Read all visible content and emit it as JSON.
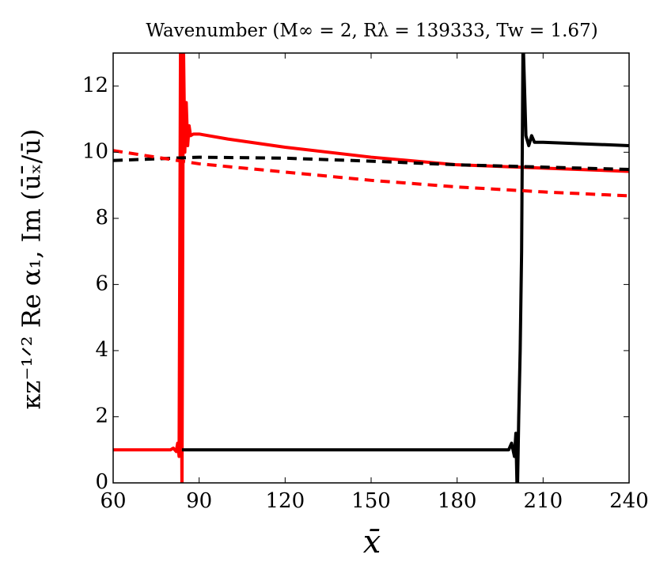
{
  "chart_data": {
    "type": "line",
    "title": "Wavenumber (M∞ = 2, Rλ = 139333, Tw = 1.67)",
    "x_label": "x̄",
    "y_label": "κz⁻¹ᐟ² Re α₁, Im (ūₓ̄/ū)",
    "xlim": [
      60,
      240
    ],
    "xticks": [
      60,
      90,
      120,
      150,
      180,
      210,
      240
    ],
    "ylim": [
      0,
      13
    ],
    "yticks": [
      0,
      2,
      4,
      6,
      8,
      10,
      12
    ],
    "series": [
      {
        "color": "#ff0000",
        "style": "solid",
        "x": [
          60,
          70,
          80,
          81,
          82,
          82.5,
          83,
          83.5,
          84,
          84.5,
          85,
          85.5,
          86,
          86.5,
          87,
          88,
          90,
          100,
          120,
          150,
          180,
          210,
          240
        ],
        "values": [
          1,
          1,
          1,
          1.05,
          0.95,
          1.2,
          0.8,
          13.5,
          -0.5,
          13.5,
          10,
          11.5,
          10.2,
          10.8,
          10.5,
          10.55,
          10.55,
          10.4,
          10.15,
          9.85,
          9.62,
          9.52,
          9.42
        ]
      },
      {
        "color": "#000000",
        "style": "solid",
        "x": [
          84,
          100,
          150,
          190,
          198,
          199,
          200,
          200.5,
          201,
          201.5,
          202,
          202.5,
          203,
          203.5,
          204,
          205,
          206,
          207,
          210,
          240
        ],
        "values": [
          1,
          1,
          1,
          1,
          1,
          1.2,
          0.8,
          1.5,
          -0.5,
          2,
          4,
          7,
          13.5,
          12,
          10.5,
          10.2,
          10.5,
          10.3,
          10.3,
          10.2
        ]
      },
      {
        "color": "#000000",
        "style": "dashed",
        "x": [
          60,
          90,
          120,
          150,
          180,
          210,
          240
        ],
        "values": [
          9.75,
          9.85,
          9.82,
          9.73,
          9.62,
          9.55,
          9.48
        ]
      },
      {
        "color": "#ff0000",
        "style": "dashed",
        "x": [
          60,
          90,
          120,
          150,
          180,
          210,
          240
        ],
        "values": [
          10.05,
          9.65,
          9.4,
          9.15,
          8.95,
          8.8,
          8.68
        ]
      }
    ]
  }
}
